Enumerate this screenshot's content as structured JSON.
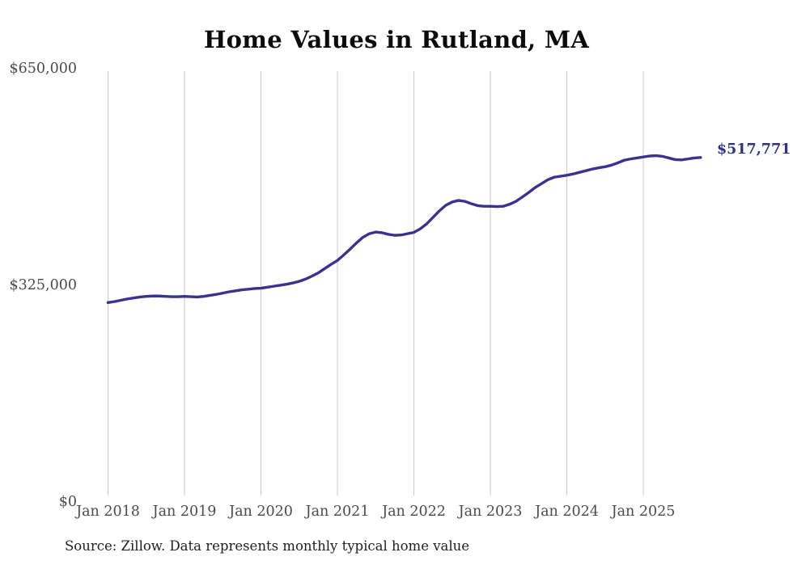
{
  "title": "Home Values in Rutland, MA",
  "end_label": "$517,771",
  "source": "Source: Zillow. Data represents monthly typical home value",
  "colors": {
    "line": "#3a3193",
    "end_label": "#312e87",
    "grid": "#cbcbcb",
    "axis_text": "#4b4b4b",
    "title_text": "#0c0c0c",
    "source_text": "#1f1f1f",
    "background": "#ffffff"
  },
  "y_axis": {
    "ticks": [
      {
        "label": "$650,000",
        "value": 650000
      },
      {
        "label": "$325,000",
        "value": 325000
      },
      {
        "label": "$0",
        "value": 0
      }
    ]
  },
  "x_axis": {
    "ticks": [
      "Jan 2018",
      "Jan 2019",
      "Jan 2020",
      "Jan 2021",
      "Jan 2022",
      "Jan 2023",
      "Jan 2024",
      "Jan 2025"
    ]
  },
  "chart_data": {
    "type": "line",
    "title": "Home Values in Rutland, MA",
    "xlabel": "",
    "ylabel": "",
    "ylim": [
      0,
      650000
    ],
    "y_tick_labels": [
      "$0",
      "$325,000",
      "$650,000"
    ],
    "x_start": "2018-01",
    "x_end": "2025-10",
    "frequency": "monthly",
    "grid": "vertical-only",
    "legend": "none",
    "end_value": 517771,
    "end_value_label": "$517,771",
    "x_tick_labels": [
      "Jan 2018",
      "Jan 2019",
      "Jan 2020",
      "Jan 2021",
      "Jan 2022",
      "Jan 2023",
      "Jan 2024",
      "Jan 2025"
    ],
    "x_tick_month_indices": [
      0,
      12,
      24,
      36,
      48,
      60,
      72,
      84
    ],
    "series": [
      {
        "name": "Monthly typical home value",
        "values": [
          295500,
          297000,
          299000,
          301000,
          302500,
          304000,
          305000,
          305500,
          305500,
          305000,
          304500,
          304500,
          305000,
          304500,
          304000,
          305000,
          306500,
          308000,
          310000,
          312000,
          313500,
          315000,
          316000,
          317000,
          317500,
          319000,
          320500,
          322000,
          323500,
          325500,
          328000,
          331500,
          336000,
          341000,
          347500,
          354000,
          360000,
          368500,
          377500,
          387000,
          395500,
          401000,
          403500,
          402500,
          400000,
          398500,
          399000,
          401000,
          403000,
          408500,
          416000,
          426000,
          436000,
          444500,
          449500,
          452000,
          450500,
          447000,
          444000,
          443000,
          443000,
          442500,
          443000,
          446000,
          450500,
          457000,
          464000,
          471500,
          477500,
          483500,
          487500,
          489000,
          490500,
          492500,
          495000,
          497500,
          500000,
          502000,
          503500,
          506000,
          509500,
          513500,
          515500,
          517000,
          518500,
          520000,
          520500,
          519500,
          517000,
          514500,
          514000,
          515500,
          517000,
          517771
        ]
      }
    ]
  }
}
